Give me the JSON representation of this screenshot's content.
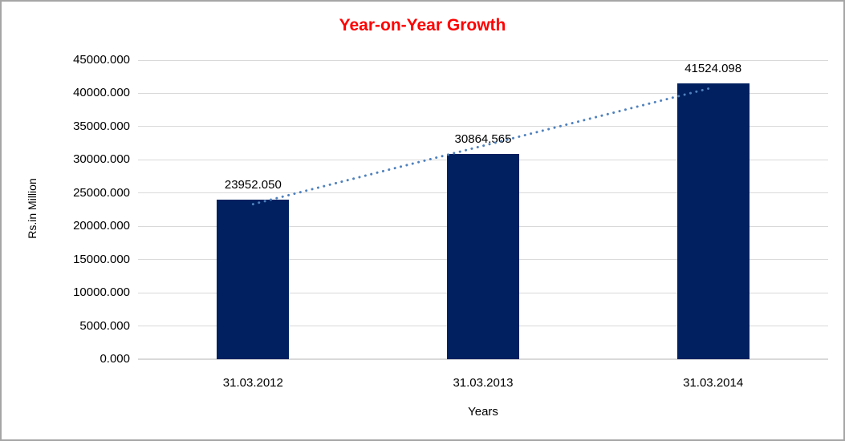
{
  "window": {
    "background": "#ffffff",
    "border_color": "#a6a6a6"
  },
  "chart_data": {
    "type": "bar",
    "title": "Year-on-Year Growth",
    "title_color": "#ff0000",
    "xlabel": "Years",
    "ylabel": "Rs.in Million",
    "categories": [
      "31.03.2012",
      "31.03.2013",
      "31.03.2014"
    ],
    "values": [
      23952.05,
      30864.565,
      41524.098
    ],
    "data_labels": [
      "23952.050",
      "30864.565",
      "41524.098"
    ],
    "y_ticks": [
      "0.000",
      "5000.000",
      "10000.000",
      "15000.000",
      "20000.000",
      "25000.000",
      "30000.000",
      "35000.000",
      "40000.000",
      "45000.000"
    ],
    "ylim": [
      0,
      45000
    ],
    "y_step": 5000,
    "grid": true,
    "legend": "none",
    "bar_color": "#002060",
    "gridline_color": "#d9d9d9",
    "trendline": {
      "type": "linear",
      "style": "dotted",
      "color": "#4f81bd"
    }
  }
}
